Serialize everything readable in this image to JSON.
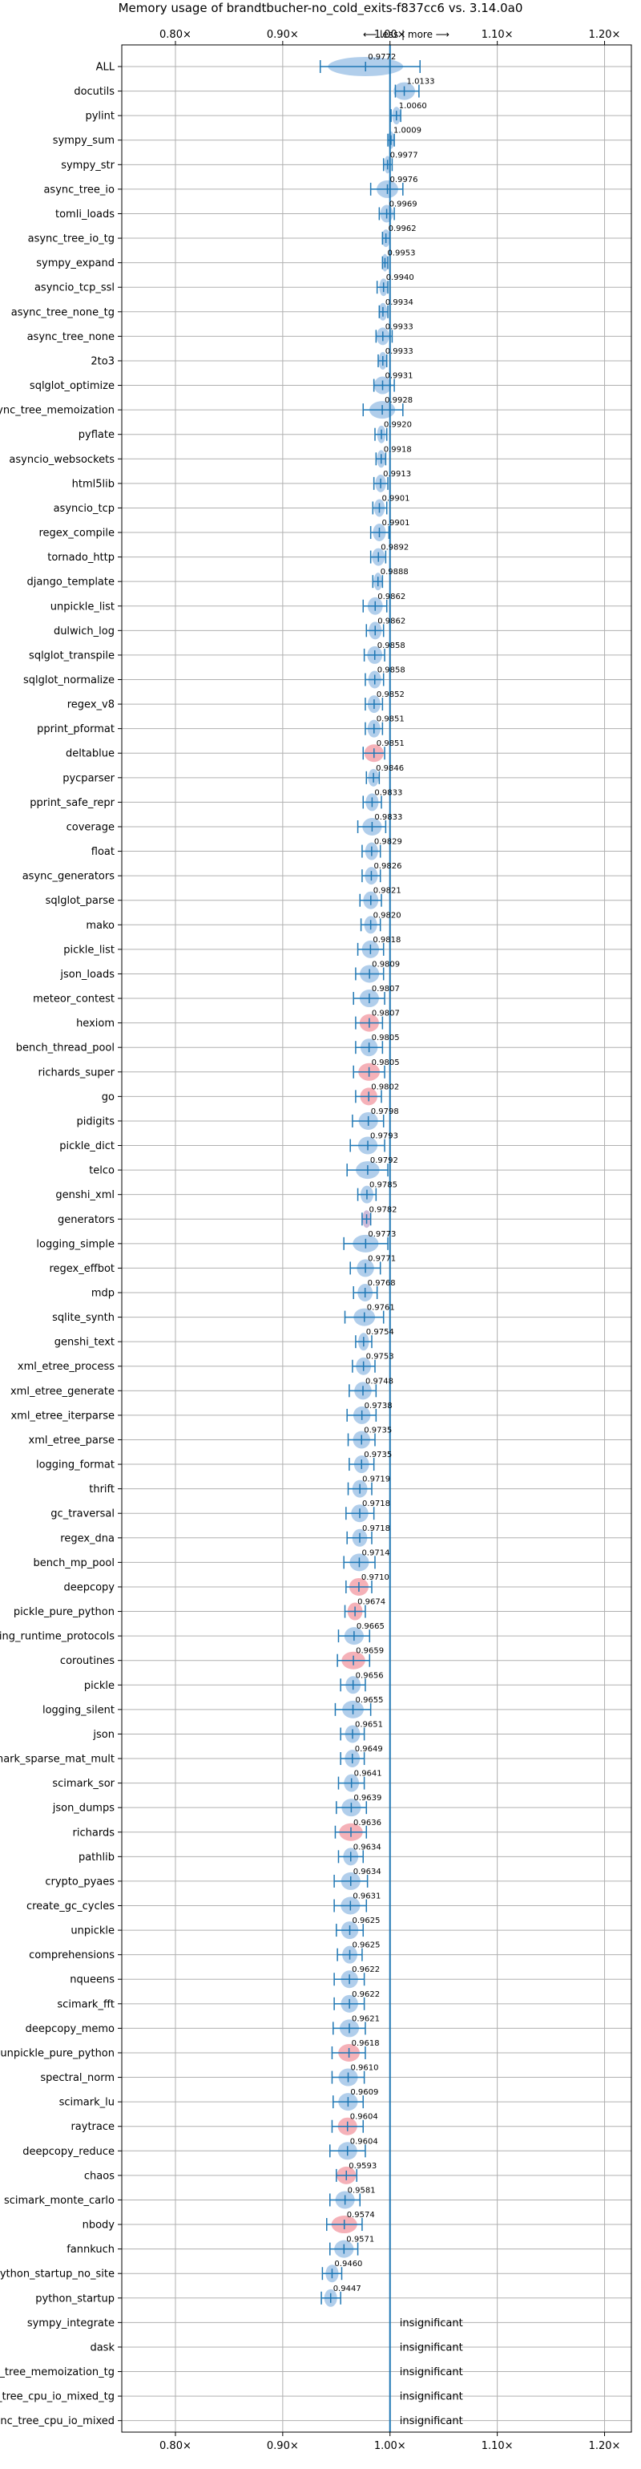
{
  "chart_data": {
    "type": "violin",
    "title": "Memory usage of brandtbucher-no_cold_exits-f837cc6 vs. 3.14.0a0",
    "direction_hint": "⟵ less | more ⟶",
    "xlim": [
      0.75,
      1.225
    ],
    "xticks": [
      0.8,
      0.9,
      1.0,
      1.1,
      1.2
    ],
    "xtick_labels": [
      "0.80×",
      "0.90×",
      "1.00×",
      "1.10×",
      "1.20×"
    ],
    "reference_line": 1.0,
    "grid": true,
    "colors": {
      "normal": "#1f77b4",
      "normal_fill": "#a9c9e9",
      "regression_fill": "#f4a9b0",
      "grid": "#b0b0b0"
    },
    "benchmarks": [
      {
        "name": "ALL",
        "value": 0.9772,
        "label": "0.9772",
        "low": 0.935,
        "high": 1.028,
        "spread": 0.035,
        "color": "blue",
        "all": true
      },
      {
        "name": "docutils",
        "value": 1.0133,
        "label": "1.0133",
        "low": 1.005,
        "high": 1.027,
        "spread": 0.01,
        "color": "blue"
      },
      {
        "name": "pylint",
        "value": 1.006,
        "label": "1.0060",
        "low": 1.001,
        "high": 1.01,
        "spread": 0.004,
        "color": "blue"
      },
      {
        "name": "sympy_sum",
        "value": 1.0009,
        "label": "1.0009",
        "low": 0.998,
        "high": 1.004,
        "spread": 0.003,
        "color": "blue"
      },
      {
        "name": "sympy_str",
        "value": 0.9977,
        "label": "0.9977",
        "low": 0.994,
        "high": 1.002,
        "spread": 0.003,
        "color": "blue"
      },
      {
        "name": "async_tree_io",
        "value": 0.9976,
        "label": "0.9976",
        "low": 0.982,
        "high": 1.012,
        "spread": 0.01,
        "color": "blue"
      },
      {
        "name": "tomli_loads",
        "value": 0.9969,
        "label": "0.9969",
        "low": 0.99,
        "high": 1.004,
        "spread": 0.006,
        "color": "blue"
      },
      {
        "name": "async_tree_io_tg",
        "value": 0.9962,
        "label": "0.9962",
        "low": 0.993,
        "high": 1.0,
        "spread": 0.004,
        "color": "blue"
      },
      {
        "name": "sympy_expand",
        "value": 0.9953,
        "label": "0.9953",
        "low": 0.993,
        "high": 0.998,
        "spread": 0.003,
        "color": "blue"
      },
      {
        "name": "asyncio_tcp_ssl",
        "value": 0.994,
        "label": "0.9940",
        "low": 0.988,
        "high": 0.998,
        "spread": 0.004,
        "color": "blue"
      },
      {
        "name": "async_tree_none_tg",
        "value": 0.9934,
        "label": "0.9934",
        "low": 0.99,
        "high": 0.998,
        "spread": 0.004,
        "color": "blue"
      },
      {
        "name": "async_tree_none",
        "value": 0.9933,
        "label": "0.9933",
        "low": 0.987,
        "high": 1.002,
        "spread": 0.006,
        "color": "blue"
      },
      {
        "name": "2to3",
        "value": 0.9933,
        "label": "0.9933",
        "low": 0.989,
        "high": 0.997,
        "spread": 0.004,
        "color": "blue"
      },
      {
        "name": "sqlglot_optimize",
        "value": 0.9931,
        "label": "0.9931",
        "low": 0.985,
        "high": 1.004,
        "spread": 0.008,
        "color": "blue"
      },
      {
        "name": "async_tree_memoization",
        "value": 0.9928,
        "label": "0.9928",
        "low": 0.975,
        "high": 1.012,
        "spread": 0.012,
        "color": "blue"
      },
      {
        "name": "pyflate",
        "value": 0.992,
        "label": "0.9920",
        "low": 0.986,
        "high": 0.997,
        "spread": 0.004,
        "color": "blue"
      },
      {
        "name": "asyncio_websockets",
        "value": 0.9918,
        "label": "0.9918",
        "low": 0.987,
        "high": 0.996,
        "spread": 0.004,
        "color": "blue"
      },
      {
        "name": "html5lib",
        "value": 0.9913,
        "label": "0.9913",
        "low": 0.985,
        "high": 0.998,
        "spread": 0.005,
        "color": "blue"
      },
      {
        "name": "asyncio_tcp",
        "value": 0.9901,
        "label": "0.9901",
        "low": 0.984,
        "high": 0.997,
        "spread": 0.005,
        "color": "blue"
      },
      {
        "name": "regex_compile",
        "value": 0.9901,
        "label": "0.9901",
        "low": 0.982,
        "high": 0.999,
        "spread": 0.006,
        "color": "blue"
      },
      {
        "name": "tornado_http",
        "value": 0.9892,
        "label": "0.9892",
        "low": 0.982,
        "high": 0.996,
        "spread": 0.006,
        "color": "blue"
      },
      {
        "name": "django_template",
        "value": 0.9888,
        "label": "0.9888",
        "low": 0.984,
        "high": 0.993,
        "spread": 0.004,
        "color": "blue"
      },
      {
        "name": "unpickle_list",
        "value": 0.9862,
        "label": "0.9862",
        "low": 0.975,
        "high": 0.997,
        "spread": 0.007,
        "color": "blue"
      },
      {
        "name": "dulwich_log",
        "value": 0.9862,
        "label": "0.9862",
        "low": 0.978,
        "high": 0.994,
        "spread": 0.006,
        "color": "blue"
      },
      {
        "name": "sqlglot_transpile",
        "value": 0.9858,
        "label": "0.9858",
        "low": 0.976,
        "high": 0.995,
        "spread": 0.007,
        "color": "blue"
      },
      {
        "name": "sqlglot_normalize",
        "value": 0.9858,
        "label": "0.9858",
        "low": 0.977,
        "high": 0.994,
        "spread": 0.006,
        "color": "blue"
      },
      {
        "name": "regex_v8",
        "value": 0.9852,
        "label": "0.9852",
        "low": 0.977,
        "high": 0.993,
        "spread": 0.006,
        "color": "blue"
      },
      {
        "name": "pprint_pformat",
        "value": 0.9851,
        "label": "0.9851",
        "low": 0.977,
        "high": 0.993,
        "spread": 0.006,
        "color": "blue"
      },
      {
        "name": "deltablue",
        "value": 0.9851,
        "label": "0.9851",
        "low": 0.975,
        "high": 0.995,
        "spread": 0.009,
        "color": "red"
      },
      {
        "name": "pycparser",
        "value": 0.9846,
        "label": "0.9846",
        "low": 0.978,
        "high": 0.99,
        "spread": 0.005,
        "color": "blue"
      },
      {
        "name": "pprint_safe_repr",
        "value": 0.9833,
        "label": "0.9833",
        "low": 0.975,
        "high": 0.992,
        "spread": 0.006,
        "color": "blue"
      },
      {
        "name": "coverage",
        "value": 0.9833,
        "label": "0.9833",
        "low": 0.97,
        "high": 0.996,
        "spread": 0.009,
        "color": "blue"
      },
      {
        "name": "float",
        "value": 0.9829,
        "label": "0.9829",
        "low": 0.974,
        "high": 0.991,
        "spread": 0.006,
        "color": "blue"
      },
      {
        "name": "async_generators",
        "value": 0.9826,
        "label": "0.9826",
        "low": 0.974,
        "high": 0.991,
        "spread": 0.006,
        "color": "blue"
      },
      {
        "name": "sqlglot_parse",
        "value": 0.9821,
        "label": "0.9821",
        "low": 0.972,
        "high": 0.992,
        "spread": 0.007,
        "color": "blue"
      },
      {
        "name": "mako",
        "value": 0.982,
        "label": "0.9820",
        "low": 0.973,
        "high": 0.991,
        "spread": 0.006,
        "color": "blue"
      },
      {
        "name": "pickle_list",
        "value": 0.9818,
        "label": "0.9818",
        "low": 0.97,
        "high": 0.994,
        "spread": 0.008,
        "color": "blue"
      },
      {
        "name": "json_loads",
        "value": 0.9809,
        "label": "0.9809",
        "low": 0.968,
        "high": 0.994,
        "spread": 0.009,
        "color": "blue"
      },
      {
        "name": "meteor_contest",
        "value": 0.9807,
        "label": "0.9807",
        "low": 0.966,
        "high": 0.995,
        "spread": 0.009,
        "color": "blue"
      },
      {
        "name": "hexiom",
        "value": 0.9807,
        "label": "0.9807",
        "low": 0.968,
        "high": 0.993,
        "spread": 0.009,
        "color": "red"
      },
      {
        "name": "bench_thread_pool",
        "value": 0.9805,
        "label": "0.9805",
        "low": 0.968,
        "high": 0.993,
        "spread": 0.008,
        "color": "blue"
      },
      {
        "name": "richards_super",
        "value": 0.9805,
        "label": "0.9805",
        "low": 0.966,
        "high": 0.995,
        "spread": 0.01,
        "color": "red"
      },
      {
        "name": "go",
        "value": 0.9802,
        "label": "0.9802",
        "low": 0.968,
        "high": 0.992,
        "spread": 0.008,
        "color": "red"
      },
      {
        "name": "pidigits",
        "value": 0.9798,
        "label": "0.9798",
        "low": 0.965,
        "high": 0.994,
        "spread": 0.009,
        "color": "blue"
      },
      {
        "name": "pickle_dict",
        "value": 0.9793,
        "label": "0.9793",
        "low": 0.963,
        "high": 0.995,
        "spread": 0.009,
        "color": "blue"
      },
      {
        "name": "telco",
        "value": 0.9792,
        "label": "0.9792",
        "low": 0.96,
        "high": 0.998,
        "spread": 0.011,
        "color": "blue"
      },
      {
        "name": "genshi_xml",
        "value": 0.9785,
        "label": "0.9785",
        "low": 0.97,
        "high": 0.987,
        "spread": 0.006,
        "color": "blue"
      },
      {
        "name": "generators",
        "value": 0.9782,
        "label": "0.9782",
        "low": 0.974,
        "high": 0.982,
        "spread": 0.004,
        "color": "purple"
      },
      {
        "name": "logging_simple",
        "value": 0.9773,
        "label": "0.9773",
        "low": 0.957,
        "high": 0.998,
        "spread": 0.012,
        "color": "blue"
      },
      {
        "name": "regex_effbot",
        "value": 0.9771,
        "label": "0.9771",
        "low": 0.963,
        "high": 0.991,
        "spread": 0.008,
        "color": "blue"
      },
      {
        "name": "mdp",
        "value": 0.9768,
        "label": "0.9768",
        "low": 0.966,
        "high": 0.988,
        "spread": 0.007,
        "color": "blue"
      },
      {
        "name": "sqlite_synth",
        "value": 0.9761,
        "label": "0.9761",
        "low": 0.958,
        "high": 0.994,
        "spread": 0.01,
        "color": "blue"
      },
      {
        "name": "genshi_text",
        "value": 0.9754,
        "label": "0.9754",
        "low": 0.968,
        "high": 0.983,
        "spread": 0.005,
        "color": "blue"
      },
      {
        "name": "xml_etree_process",
        "value": 0.9753,
        "label": "0.9753",
        "low": 0.965,
        "high": 0.986,
        "spread": 0.007,
        "color": "blue"
      },
      {
        "name": "xml_etree_generate",
        "value": 0.9748,
        "label": "0.9748",
        "low": 0.962,
        "high": 0.987,
        "spread": 0.008,
        "color": "blue"
      },
      {
        "name": "xml_etree_iterparse",
        "value": 0.9738,
        "label": "0.9738",
        "low": 0.96,
        "high": 0.987,
        "spread": 0.008,
        "color": "blue"
      },
      {
        "name": "xml_etree_parse",
        "value": 0.9735,
        "label": "0.9735",
        "low": 0.961,
        "high": 0.986,
        "spread": 0.008,
        "color": "blue"
      },
      {
        "name": "logging_format",
        "value": 0.9735,
        "label": "0.9735",
        "low": 0.962,
        "high": 0.985,
        "spread": 0.007,
        "color": "blue"
      },
      {
        "name": "thrift",
        "value": 0.9719,
        "label": "0.9719",
        "low": 0.961,
        "high": 0.983,
        "spread": 0.007,
        "color": "blue"
      },
      {
        "name": "gc_traversal",
        "value": 0.9718,
        "label": "0.9718",
        "low": 0.959,
        "high": 0.985,
        "spread": 0.008,
        "color": "blue"
      },
      {
        "name": "regex_dna",
        "value": 0.9718,
        "label": "0.9718",
        "low": 0.96,
        "high": 0.983,
        "spread": 0.007,
        "color": "blue"
      },
      {
        "name": "bench_mp_pool",
        "value": 0.9714,
        "label": "0.9714",
        "low": 0.957,
        "high": 0.986,
        "spread": 0.009,
        "color": "blue"
      },
      {
        "name": "deepcopy",
        "value": 0.971,
        "label": "0.9710",
        "low": 0.959,
        "high": 0.983,
        "spread": 0.009,
        "color": "red"
      },
      {
        "name": "pickle_pure_python",
        "value": 0.9674,
        "label": "0.9674",
        "low": 0.958,
        "high": 0.977,
        "spread": 0.007,
        "color": "red"
      },
      {
        "name": "typing_runtime_protocols",
        "value": 0.9665,
        "label": "0.9665",
        "low": 0.952,
        "high": 0.981,
        "spread": 0.009,
        "color": "blue"
      },
      {
        "name": "coroutines",
        "value": 0.9659,
        "label": "0.9659",
        "low": 0.951,
        "high": 0.981,
        "spread": 0.011,
        "color": "red"
      },
      {
        "name": "pickle",
        "value": 0.9656,
        "label": "0.9656",
        "low": 0.954,
        "high": 0.977,
        "spread": 0.007,
        "color": "blue"
      },
      {
        "name": "logging_silent",
        "value": 0.9655,
        "label": "0.9655",
        "low": 0.949,
        "high": 0.982,
        "spread": 0.01,
        "color": "blue"
      },
      {
        "name": "json",
        "value": 0.9651,
        "label": "0.9651",
        "low": 0.954,
        "high": 0.976,
        "spread": 0.007,
        "color": "blue"
      },
      {
        "name": "scimark_sparse_mat_mult",
        "value": 0.9649,
        "label": "0.9649",
        "low": 0.954,
        "high": 0.976,
        "spread": 0.007,
        "color": "blue"
      },
      {
        "name": "scimark_sor",
        "value": 0.9641,
        "label": "0.9641",
        "low": 0.952,
        "high": 0.976,
        "spread": 0.007,
        "color": "blue"
      },
      {
        "name": "json_dumps",
        "value": 0.9639,
        "label": "0.9639",
        "low": 0.95,
        "high": 0.978,
        "spread": 0.009,
        "color": "blue"
      },
      {
        "name": "richards",
        "value": 0.9636,
        "label": "0.9636",
        "low": 0.949,
        "high": 0.978,
        "spread": 0.011,
        "color": "red"
      },
      {
        "name": "pathlib",
        "value": 0.9634,
        "label": "0.9634",
        "low": 0.952,
        "high": 0.975,
        "spread": 0.007,
        "color": "blue"
      },
      {
        "name": "crypto_pyaes",
        "value": 0.9634,
        "label": "0.9634",
        "low": 0.948,
        "high": 0.979,
        "spread": 0.009,
        "color": "blue"
      },
      {
        "name": "create_gc_cycles",
        "value": 0.9631,
        "label": "0.9631",
        "low": 0.948,
        "high": 0.978,
        "spread": 0.009,
        "color": "blue"
      },
      {
        "name": "unpickle",
        "value": 0.9625,
        "label": "0.9625",
        "low": 0.95,
        "high": 0.975,
        "spread": 0.008,
        "color": "blue"
      },
      {
        "name": "comprehensions",
        "value": 0.9625,
        "label": "0.9625",
        "low": 0.951,
        "high": 0.974,
        "spread": 0.007,
        "color": "blue"
      },
      {
        "name": "nqueens",
        "value": 0.9622,
        "label": "0.9622",
        "low": 0.948,
        "high": 0.976,
        "spread": 0.008,
        "color": "blue"
      },
      {
        "name": "scimark_fft",
        "value": 0.9622,
        "label": "0.9622",
        "low": 0.948,
        "high": 0.976,
        "spread": 0.008,
        "color": "blue"
      },
      {
        "name": "deepcopy_memo",
        "value": 0.9621,
        "label": "0.9621",
        "low": 0.947,
        "high": 0.977,
        "spread": 0.009,
        "color": "blue"
      },
      {
        "name": "unpickle_pure_python",
        "value": 0.9618,
        "label": "0.9618",
        "low": 0.946,
        "high": 0.977,
        "spread": 0.01,
        "color": "red"
      },
      {
        "name": "spectral_norm",
        "value": 0.961,
        "label": "0.9610",
        "low": 0.946,
        "high": 0.976,
        "spread": 0.009,
        "color": "blue"
      },
      {
        "name": "scimark_lu",
        "value": 0.9609,
        "label": "0.9609",
        "low": 0.947,
        "high": 0.975,
        "spread": 0.009,
        "color": "blue"
      },
      {
        "name": "raytrace",
        "value": 0.9604,
        "label": "0.9604",
        "low": 0.946,
        "high": 0.975,
        "spread": 0.009,
        "color": "red"
      },
      {
        "name": "deepcopy_reduce",
        "value": 0.9604,
        "label": "0.9604",
        "low": 0.944,
        "high": 0.977,
        "spread": 0.009,
        "color": "blue"
      },
      {
        "name": "chaos",
        "value": 0.9593,
        "label": "0.9593",
        "low": 0.95,
        "high": 0.969,
        "spread": 0.009,
        "color": "red"
      },
      {
        "name": "scimark_monte_carlo",
        "value": 0.9581,
        "label": "0.9581",
        "low": 0.944,
        "high": 0.972,
        "spread": 0.009,
        "color": "blue"
      },
      {
        "name": "nbody",
        "value": 0.9574,
        "label": "0.9574",
        "low": 0.941,
        "high": 0.974,
        "spread": 0.012,
        "color": "red"
      },
      {
        "name": "fannkuch",
        "value": 0.9571,
        "label": "0.9571",
        "low": 0.944,
        "high": 0.97,
        "spread": 0.009,
        "color": "blue"
      },
      {
        "name": "python_startup_no_site",
        "value": 0.946,
        "label": "0.9460",
        "low": 0.937,
        "high": 0.955,
        "spread": 0.006,
        "color": "blue"
      },
      {
        "name": "python_startup",
        "value": 0.9447,
        "label": "0.9447",
        "low": 0.936,
        "high": 0.954,
        "spread": 0.006,
        "color": "blue"
      },
      {
        "name": "sympy_integrate",
        "insignificant": true,
        "label": "insignificant"
      },
      {
        "name": "dask",
        "insignificant": true,
        "label": "insignificant"
      },
      {
        "name": "async_tree_memoization_tg",
        "insignificant": true,
        "label": "insignificant"
      },
      {
        "name": "async_tree_cpu_io_mixed_tg",
        "insignificant": true,
        "label": "insignificant"
      },
      {
        "name": "async_tree_cpu_io_mixed",
        "insignificant": true,
        "label": "insignificant"
      }
    ]
  }
}
